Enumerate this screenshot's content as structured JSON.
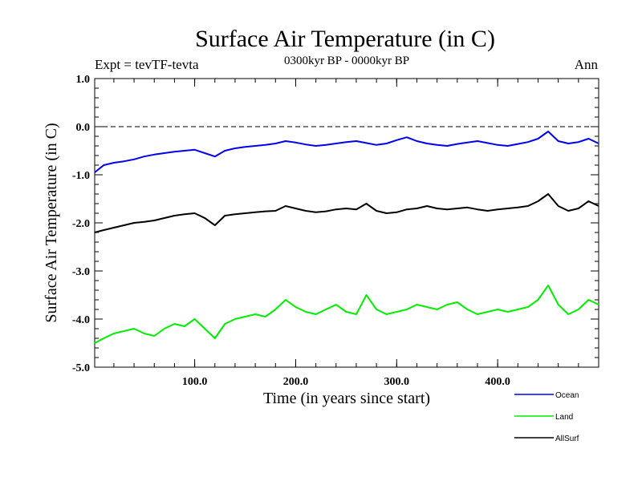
{
  "chart_data": {
    "type": "line",
    "title": "Surface Air Temperature (in C)",
    "subtitle": "0300kyr BP - 0000kyr BP",
    "expt_label": "Expt = tevTF-tevta",
    "period_label": "Ann",
    "xlabel": "Time (in years since start)",
    "ylabel": "Surface Air Temperature (in C)",
    "xlim": [
      1,
      500
    ],
    "ylim": [
      -5.0,
      1.0
    ],
    "x_ticks": [
      100,
      200,
      300,
      400
    ],
    "x_tick_labels": [
      "100.0",
      "200.0",
      "300.0",
      "400.0"
    ],
    "y_ticks": [
      1.0,
      0.0,
      -1.0,
      -2.0,
      -3.0,
      -4.0,
      -5.0
    ],
    "y_tick_labels": [
      "1.0",
      "0.0",
      "-1.0",
      "-2.0",
      "-3.0",
      "-4.0",
      "-5.0"
    ],
    "reference_line": 0.0,
    "legend": {
      "placement": "bottom-right"
    },
    "series": [
      {
        "name": "Ocean",
        "color": "#0000ee",
        "x_step": 10,
        "x": [
          1,
          10,
          20,
          30,
          40,
          50,
          60,
          70,
          80,
          90,
          100,
          110,
          120,
          130,
          140,
          150,
          160,
          170,
          180,
          190,
          200,
          210,
          220,
          230,
          240,
          250,
          260,
          270,
          280,
          290,
          300,
          310,
          320,
          330,
          340,
          350,
          360,
          370,
          380,
          390,
          400,
          410,
          420,
          430,
          440,
          450,
          460,
          470,
          480,
          490,
          500
        ],
        "values": [
          -0.95,
          -0.8,
          -0.75,
          -0.72,
          -0.68,
          -0.62,
          -0.58,
          -0.55,
          -0.52,
          -0.5,
          -0.48,
          -0.55,
          -0.62,
          -0.5,
          -0.45,
          -0.42,
          -0.4,
          -0.38,
          -0.35,
          -0.3,
          -0.33,
          -0.37,
          -0.4,
          -0.38,
          -0.35,
          -0.32,
          -0.3,
          -0.34,
          -0.38,
          -0.35,
          -0.28,
          -0.22,
          -0.3,
          -0.35,
          -0.38,
          -0.4,
          -0.36,
          -0.33,
          -0.3,
          -0.34,
          -0.38,
          -0.4,
          -0.36,
          -0.32,
          -0.25,
          -0.1,
          -0.3,
          -0.35,
          -0.32,
          -0.25,
          -0.35
        ]
      },
      {
        "name": "Land",
        "color": "#00ee00",
        "x_step": 10,
        "x": [
          1,
          10,
          20,
          30,
          40,
          50,
          60,
          70,
          80,
          90,
          100,
          110,
          120,
          130,
          140,
          150,
          160,
          170,
          180,
          190,
          200,
          210,
          220,
          230,
          240,
          250,
          260,
          270,
          280,
          290,
          300,
          310,
          320,
          330,
          340,
          350,
          360,
          370,
          380,
          390,
          400,
          410,
          420,
          430,
          440,
          450,
          460,
          470,
          480,
          490,
          500
        ],
        "values": [
          -4.5,
          -4.4,
          -4.3,
          -4.25,
          -4.2,
          -4.3,
          -4.35,
          -4.2,
          -4.1,
          -4.15,
          -4.0,
          -4.2,
          -4.4,
          -4.1,
          -4.0,
          -3.95,
          -3.9,
          -3.95,
          -3.8,
          -3.6,
          -3.75,
          -3.85,
          -3.9,
          -3.8,
          -3.7,
          -3.85,
          -3.9,
          -3.5,
          -3.8,
          -3.9,
          -3.85,
          -3.8,
          -3.7,
          -3.75,
          -3.8,
          -3.7,
          -3.65,
          -3.8,
          -3.9,
          -3.85,
          -3.8,
          -3.85,
          -3.8,
          -3.75,
          -3.6,
          -3.3,
          -3.7,
          -3.9,
          -3.8,
          -3.6,
          -3.7
        ]
      },
      {
        "name": "AllSurf",
        "color": "#000000",
        "x_step": 10,
        "x": [
          1,
          10,
          20,
          30,
          40,
          50,
          60,
          70,
          80,
          90,
          100,
          110,
          120,
          130,
          140,
          150,
          160,
          170,
          180,
          190,
          200,
          210,
          220,
          230,
          240,
          250,
          260,
          270,
          280,
          290,
          300,
          310,
          320,
          330,
          340,
          350,
          360,
          370,
          380,
          390,
          400,
          410,
          420,
          430,
          440,
          450,
          460,
          470,
          480,
          490,
          500
        ],
        "values": [
          -2.2,
          -2.15,
          -2.1,
          -2.05,
          -2.0,
          -1.98,
          -1.95,
          -1.9,
          -1.85,
          -1.82,
          -1.8,
          -1.9,
          -2.05,
          -1.85,
          -1.82,
          -1.8,
          -1.78,
          -1.76,
          -1.75,
          -1.65,
          -1.7,
          -1.75,
          -1.78,
          -1.76,
          -1.72,
          -1.7,
          -1.72,
          -1.6,
          -1.75,
          -1.8,
          -1.78,
          -1.72,
          -1.7,
          -1.65,
          -1.7,
          -1.72,
          -1.7,
          -1.68,
          -1.72,
          -1.75,
          -1.72,
          -1.7,
          -1.68,
          -1.65,
          -1.55,
          -1.4,
          -1.65,
          -1.75,
          -1.7,
          -1.55,
          -1.65
        ]
      }
    ]
  }
}
